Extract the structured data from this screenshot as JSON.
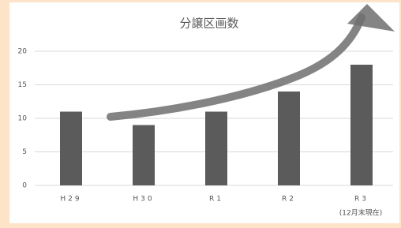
{
  "chart_data": {
    "type": "bar",
    "title": "分譲区画数",
    "note": "(12月末現在)",
    "categories": [
      "H29",
      "H30",
      "R1",
      "R2",
      "R3"
    ],
    "values": [
      11,
      9,
      11,
      14,
      18
    ],
    "color": "#5b5b5b",
    "ylim": [
      0,
      20
    ],
    "yticks": [
      0,
      5,
      10,
      15,
      20
    ],
    "grid": true
  }
}
